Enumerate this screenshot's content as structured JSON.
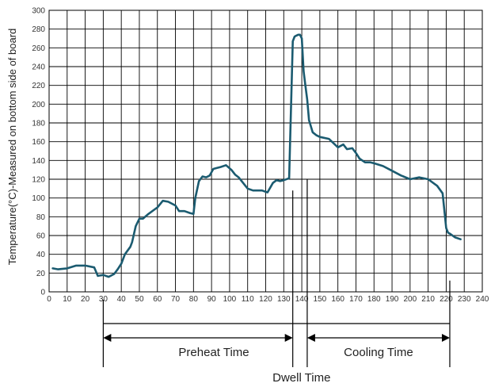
{
  "chart_data": {
    "type": "line",
    "title": "",
    "xlabel": "",
    "ylabel": "Temperature(°C)-Measured on bottom side of board",
    "xlim": [
      0,
      240
    ],
    "ylim": [
      0,
      300
    ],
    "xticks": [
      "0",
      "10",
      "20",
      "30",
      "40",
      "50",
      "60",
      "70",
      "80",
      "90",
      "100",
      "110",
      "120",
      "130",
      "140",
      "150",
      "160",
      "170",
      "180",
      "190",
      "200",
      "210",
      "220",
      "230",
      "240"
    ],
    "yticks": [
      "0",
      "20",
      "40",
      "60",
      "80",
      "100",
      "120",
      "140",
      "160",
      "180",
      "200",
      "220",
      "240",
      "260",
      "280",
      "300"
    ],
    "grid": true,
    "series": [
      {
        "color": "#1b5b70",
        "x": [
          2,
          5,
          10,
          15,
          20,
          25,
          27,
          30,
          33,
          36,
          38,
          40,
          42,
          45,
          46,
          48,
          50,
          52,
          55,
          60,
          63,
          66,
          70,
          72,
          75,
          78,
          80,
          81,
          83,
          85,
          87,
          89,
          91,
          93,
          95,
          98,
          101,
          103,
          105,
          110,
          113,
          115,
          118,
          121,
          124,
          126,
          128,
          130,
          133,
          135,
          136,
          137,
          138,
          139,
          140,
          141,
          142,
          143,
          144,
          146,
          148,
          150,
          155,
          160,
          163,
          165,
          168,
          170,
          172,
          175,
          178,
          180,
          185,
          190,
          195,
          200,
          205,
          210,
          215,
          218,
          220,
          221,
          222,
          225,
          228
        ],
        "y": [
          25,
          24,
          25,
          28,
          28,
          26,
          17,
          18,
          16,
          19,
          24,
          30,
          40,
          48,
          53,
          70,
          78,
          78,
          83,
          90,
          97,
          96,
          92,
          86,
          86,
          84,
          83,
          100,
          118,
          123,
          122,
          124,
          131,
          132,
          133,
          135,
          130,
          125,
          122,
          110,
          108,
          108,
          108,
          106,
          116,
          119,
          118,
          119,
          121,
          267,
          272,
          273,
          274,
          274,
          270,
          235,
          220,
          205,
          183,
          170,
          167,
          165,
          163,
          154,
          157,
          152,
          153,
          148,
          142,
          138,
          138,
          137,
          134,
          129,
          124,
          120,
          122,
          120,
          113,
          105,
          68,
          63,
          62,
          58,
          56
        ]
      }
    ],
    "annotations": [
      {
        "text": "Preheat Time",
        "from_x": 30,
        "to_x": 135
      },
      {
        "text": "Dwell Time",
        "from_x": 135,
        "to_x": 143
      },
      {
        "text": "Cooling Time",
        "from_x": 143,
        "to_x": 222
      }
    ]
  }
}
